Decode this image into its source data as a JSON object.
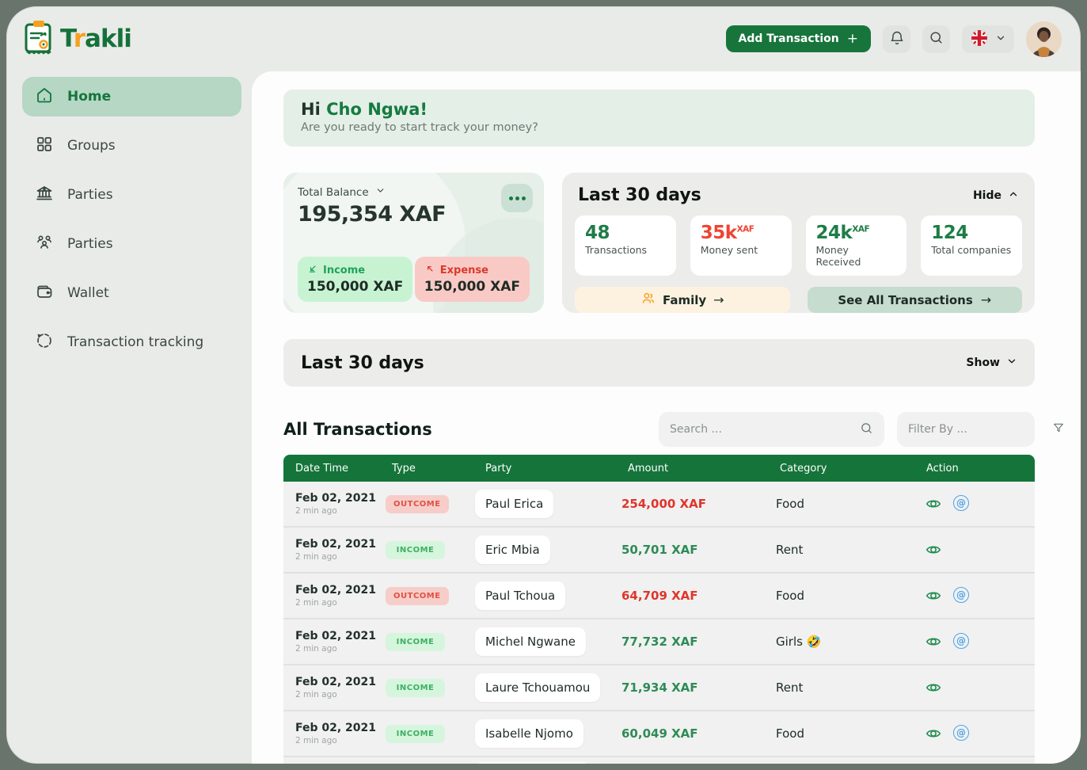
{
  "brand": {
    "name": "Trakli"
  },
  "topbar": {
    "add_transaction": "Add Transaction",
    "plus": "+"
  },
  "sidebar": {
    "items": [
      {
        "label": "Home",
        "active": true
      },
      {
        "label": "Groups",
        "active": false
      },
      {
        "label": "Parties",
        "active": false
      },
      {
        "label": "Parties",
        "active": false
      },
      {
        "label": "Wallet",
        "active": false
      },
      {
        "label": "Transaction tracking",
        "active": false
      }
    ]
  },
  "greeting": {
    "hi": "Hi",
    "name": "Cho Ngwa!",
    "subtitle": "Are you ready to start track your money?"
  },
  "balance": {
    "label": "Total Balance",
    "amount": "195,354 XAF",
    "income_label": "Income",
    "income_amount": "150,000 XAF",
    "expense_label": "Expense",
    "expense_amount": "150,000 XAF"
  },
  "last30": {
    "title": "Last 30 days",
    "hide_label": "Hide",
    "stats": [
      {
        "value": "48",
        "unit": "",
        "label": "Transactions",
        "color": "#1e7d46"
      },
      {
        "value": "35k",
        "unit": "XAF",
        "label": "Money sent",
        "color": "#ee4433"
      },
      {
        "value": "24k",
        "unit": "XAF",
        "label": "Money Received",
        "color": "#1e7d46"
      },
      {
        "value": "124",
        "unit": "",
        "label": "Total companies",
        "color": "#1e7d46"
      }
    ],
    "family_label": "Family",
    "see_all_label": "See All Transactions",
    "arrow": "→"
  },
  "collapsed_section": {
    "title": "Last 30 days",
    "show_label": "Show"
  },
  "transactions": {
    "title": "All Transactions",
    "search_placeholder": "Search ...",
    "filter_placeholder": "Filter By ...",
    "columns": [
      "Date Time",
      "Type",
      "Party",
      "Amount",
      "Category",
      "Action"
    ],
    "rows": [
      {
        "date": "Feb 02, 2021",
        "ago": "2 min ago",
        "type": "OUTCOME",
        "party": "Paul Erica",
        "amount": "254,000 XAF",
        "direction": "out",
        "category": "Food",
        "actions": [
          "view",
          "attach"
        ]
      },
      {
        "date": "Feb 02, 2021",
        "ago": "2 min ago",
        "type": "INCOME",
        "party": "Eric Mbia",
        "amount": "50,701 XAF",
        "direction": "in",
        "category": "Rent",
        "actions": [
          "view"
        ]
      },
      {
        "date": "Feb 02, 2021",
        "ago": "2 min ago",
        "type": "OUTCOME",
        "party": "Paul Tchoua",
        "amount": "64,709 XAF",
        "direction": "out",
        "category": "Food",
        "actions": [
          "view",
          "attach"
        ]
      },
      {
        "date": "Feb 02, 2021",
        "ago": "2 min ago",
        "type": "INCOME",
        "party": "Michel Ngwane",
        "amount": "77,732 XAF",
        "direction": "in",
        "category": "Girls 🤣",
        "actions": [
          "view",
          "attach"
        ]
      },
      {
        "date": "Feb 02, 2021",
        "ago": "2 min ago",
        "type": "INCOME",
        "party": "Laure Tchouamou",
        "amount": "71,934 XAF",
        "direction": "in",
        "category": "Rent",
        "actions": [
          "view"
        ]
      },
      {
        "date": "Feb 02, 2021",
        "ago": "2 min ago",
        "type": "INCOME",
        "party": "Isabelle Njomo",
        "amount": "60,049 XAF",
        "direction": "in",
        "category": "Food",
        "actions": [
          "view",
          "attach"
        ]
      }
    ]
  },
  "colors": {
    "primary_green": "#17753c",
    "accent_orange": "#f5a11f",
    "income_green": "#2e8b57",
    "expense_red": "#e0352b",
    "table_header_green": "#15743a"
  }
}
